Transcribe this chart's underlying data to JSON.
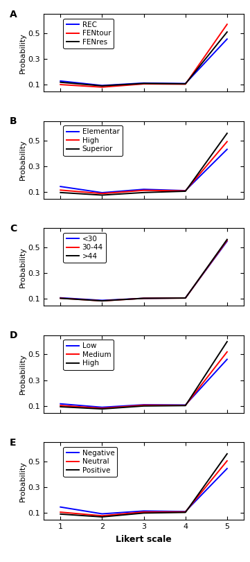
{
  "x": [
    1,
    2,
    3,
    4,
    5
  ],
  "panels": [
    {
      "label": "A",
      "lines": [
        {
          "name": "REC",
          "color": "#0000FF",
          "y": [
            0.128,
            0.093,
            0.112,
            0.108,
            0.455
          ]
        },
        {
          "name": "FENtour",
          "color": "#FF0000",
          "y": [
            0.1,
            0.08,
            0.105,
            0.103,
            0.57
          ]
        },
        {
          "name": "FENres",
          "color": "#000000",
          "y": [
            0.118,
            0.09,
            0.109,
            0.106,
            0.51
          ]
        }
      ]
    },
    {
      "label": "B",
      "lines": [
        {
          "name": "Elementar",
          "color": "#0000FF",
          "y": [
            0.14,
            0.092,
            0.118,
            0.108,
            0.43
          ]
        },
        {
          "name": "High",
          "color": "#FF0000",
          "y": [
            0.112,
            0.085,
            0.11,
            0.106,
            0.49
          ]
        },
        {
          "name": "Superior",
          "color": "#000000",
          "y": [
            0.093,
            0.073,
            0.093,
            0.103,
            0.555
          ]
        }
      ]
    },
    {
      "label": "C",
      "lines": [
        {
          "name": "<30",
          "color": "#0000FF",
          "y": [
            0.107,
            0.087,
            0.103,
            0.106,
            0.548
          ]
        },
        {
          "name": "30-44",
          "color": "#FF0000",
          "y": [
            0.104,
            0.083,
            0.103,
            0.105,
            0.555
          ]
        },
        {
          "name": ">44",
          "color": "#000000",
          "y": [
            0.103,
            0.083,
            0.103,
            0.105,
            0.562
          ]
        }
      ]
    },
    {
      "label": "D",
      "lines": [
        {
          "name": "Low",
          "color": "#0000FF",
          "y": [
            0.115,
            0.088,
            0.108,
            0.106,
            0.462
          ]
        },
        {
          "name": "Medium",
          "color": "#FF0000",
          "y": [
            0.102,
            0.08,
            0.104,
            0.103,
            0.52
          ]
        },
        {
          "name": "High",
          "color": "#000000",
          "y": [
            0.092,
            0.075,
            0.098,
            0.101,
            0.6
          ]
        }
      ]
    },
    {
      "label": "E",
      "lines": [
        {
          "name": "Negative",
          "color": "#0000FF",
          "y": [
            0.145,
            0.092,
            0.114,
            0.11,
            0.445
          ]
        },
        {
          "name": "Neutral",
          "color": "#FF0000",
          "y": [
            0.105,
            0.077,
            0.106,
            0.107,
            0.505
          ]
        },
        {
          "name": "Positive",
          "color": "#000000",
          "y": [
            0.09,
            0.068,
            0.098,
            0.103,
            0.56
          ]
        }
      ]
    }
  ],
  "ylabel": "Probability",
  "xlabel": "Likert scale",
  "yticks": [
    0.1,
    0.3,
    0.5
  ],
  "ytick_labels": [
    "0.1",
    "0.3",
    "0.5"
  ],
  "xticks": [
    1,
    2,
    3,
    4,
    5
  ],
  "ylim": [
    0.045,
    0.65
  ],
  "xlim": [
    0.6,
    5.4
  ],
  "background_color": "#FFFFFF",
  "linewidth": 1.4,
  "legend_fontsize": 7.5,
  "tick_fontsize": 8,
  "ylabel_fontsize": 8,
  "xlabel_fontsize": 9
}
